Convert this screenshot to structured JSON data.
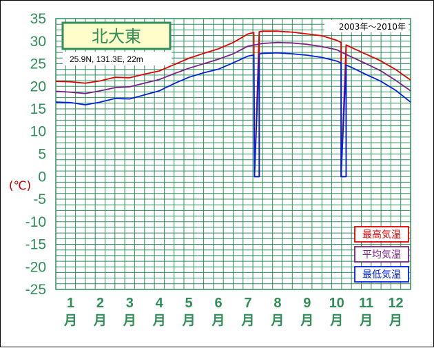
{
  "chart_data": {
    "type": "line",
    "title": "北大東",
    "subtitle": "25.9N,  131.3E,  22m",
    "period": "2003年～2010年",
    "ylabel": "(℃)",
    "ylim": [
      -25,
      35
    ],
    "yticks": [
      35,
      30,
      25,
      20,
      15,
      10,
      5,
      0,
      -5,
      -10,
      -15,
      -20,
      -25
    ],
    "months": [
      {
        "num": "1",
        "label": "月"
      },
      {
        "num": "2",
        "label": "月"
      },
      {
        "num": "3",
        "label": "月"
      },
      {
        "num": "4",
        "label": "月"
      },
      {
        "num": "5",
        "label": "月"
      },
      {
        "num": "6",
        "label": "月"
      },
      {
        "num": "7",
        "label": "月"
      },
      {
        "num": "8",
        "label": "月"
      },
      {
        "num": "9",
        "label": "月"
      },
      {
        "num": "10",
        "label": "月"
      },
      {
        "num": "11",
        "label": "月"
      },
      {
        "num": "12",
        "label": "月"
      }
    ],
    "x_unit": "month (0–12, continuous daily series)",
    "series": [
      {
        "name": "最高気温",
        "color": "#e00000",
        "points": [
          [
            0,
            21.1
          ],
          [
            0.5,
            21.0
          ],
          [
            1,
            20.7
          ],
          [
            1.5,
            21.2
          ],
          [
            2,
            22.0
          ],
          [
            2.5,
            21.9
          ],
          [
            3,
            22.7
          ],
          [
            3.5,
            23.4
          ],
          [
            4,
            24.8
          ],
          [
            4.5,
            26.2
          ],
          [
            5,
            27.3
          ],
          [
            5.5,
            28.3
          ],
          [
            6,
            29.7
          ],
          [
            6.5,
            31.6
          ],
          [
            6.75,
            32.0
          ],
          [
            7,
            32.2
          ],
          [
            7.5,
            32.2
          ],
          [
            8,
            32.0
          ],
          [
            8.5,
            31.6
          ],
          [
            9,
            31.2
          ],
          [
            9.5,
            30.2
          ],
          [
            10,
            28.6
          ],
          [
            10.5,
            27.1
          ],
          [
            11,
            25.6
          ],
          [
            11.5,
            23.7
          ],
          [
            12,
            21.4
          ]
        ],
        "gaps": [
          [
            6.72,
            6.88
          ],
          [
            9.65,
            9.82
          ]
        ]
      },
      {
        "name": "平均気温",
        "color": "#7b1f87",
        "points": [
          [
            0,
            18.9
          ],
          [
            0.5,
            18.7
          ],
          [
            1,
            18.4
          ],
          [
            1.5,
            19.0
          ],
          [
            2,
            19.7
          ],
          [
            2.5,
            19.9
          ],
          [
            3,
            20.7
          ],
          [
            3.5,
            21.5
          ],
          [
            4,
            22.8
          ],
          [
            4.5,
            24.0
          ],
          [
            5,
            25.0
          ],
          [
            5.5,
            26.0
          ],
          [
            6,
            27.2
          ],
          [
            6.5,
            28.9
          ],
          [
            7,
            29.5
          ],
          [
            7.5,
            29.7
          ],
          [
            8,
            29.6
          ],
          [
            8.5,
            29.3
          ],
          [
            9,
            28.8
          ],
          [
            9.5,
            28.1
          ],
          [
            10,
            26.5
          ],
          [
            10.5,
            25.0
          ],
          [
            11,
            23.4
          ],
          [
            11.5,
            21.3
          ],
          [
            12,
            19.0
          ]
        ],
        "gaps": []
      },
      {
        "name": "最低気温",
        "color": "#0020e0",
        "points": [
          [
            0,
            16.5
          ],
          [
            0.5,
            16.4
          ],
          [
            1,
            15.9
          ],
          [
            1.5,
            16.5
          ],
          [
            2,
            17.3
          ],
          [
            2.5,
            17.2
          ],
          [
            3,
            18.1
          ],
          [
            3.5,
            19.0
          ],
          [
            4,
            20.6
          ],
          [
            4.5,
            22.0
          ],
          [
            5,
            23.0
          ],
          [
            5.5,
            23.8
          ],
          [
            6,
            25.2
          ],
          [
            6.5,
            26.7
          ],
          [
            7,
            27.3
          ],
          [
            7.5,
            27.4
          ],
          [
            8,
            27.2
          ],
          [
            8.5,
            26.9
          ],
          [
            9,
            26.4
          ],
          [
            9.5,
            25.6
          ],
          [
            10,
            24.2
          ],
          [
            10.5,
            22.6
          ],
          [
            11,
            21.1
          ],
          [
            11.5,
            19.1
          ],
          [
            12,
            16.5
          ]
        ],
        "gaps": [
          [
            6.72,
            6.88
          ],
          [
            9.65,
            9.82
          ]
        ]
      }
    ],
    "legend_position": "bottom-right",
    "grid": true
  }
}
